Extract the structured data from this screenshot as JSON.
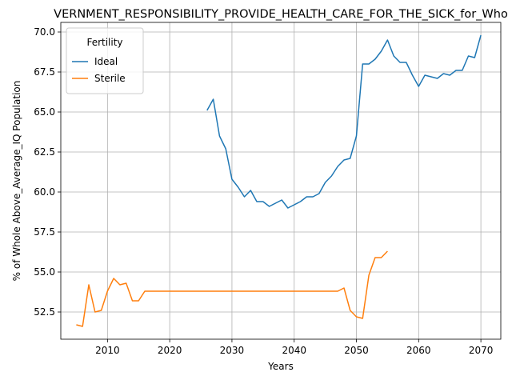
{
  "chart_data": {
    "type": "line",
    "title": "VERNMENT_RESPONSIBILITY_PROVIDE_HEALTH_CARE_FOR_THE_SICK_for_Who",
    "xlabel": "Years",
    "ylabel": "% of Whole Above_Average_IQ Population",
    "xlim": [
      2002.5,
      2073.2
    ],
    "ylim": [
      50.8,
      70.6
    ],
    "xticks": [
      2010,
      2020,
      2030,
      2040,
      2050,
      2060,
      2070
    ],
    "yticks": [
      52.5,
      55.0,
      57.5,
      60.0,
      62.5,
      65.0,
      67.5,
      70.0
    ],
    "ytick_labels": [
      "52.5",
      "55.0",
      "57.5",
      "60.0",
      "62.5",
      "65.0",
      "67.5",
      "70.0"
    ],
    "grid": true,
    "legend": {
      "title": "Fertility",
      "placement": "top-left"
    },
    "series": [
      {
        "name": "Ideal",
        "color": "#1f77b4",
        "x": [
          2026,
          2027,
          2028,
          2029,
          2030,
          2031,
          2032,
          2033,
          2034,
          2035,
          2036,
          2037,
          2038,
          2039,
          2040,
          2041,
          2042,
          2043,
          2044,
          2045,
          2046,
          2047,
          2048,
          2049,
          2050,
          2051,
          2052,
          2053,
          2054,
          2055,
          2056,
          2057,
          2058,
          2059,
          2060,
          2061,
          2062,
          2063,
          2064,
          2065,
          2066,
          2067,
          2068,
          2069,
          2070
        ],
        "y": [
          65.1,
          65.8,
          63.5,
          62.7,
          60.8,
          60.3,
          59.7,
          60.1,
          59.4,
          59.4,
          59.1,
          59.3,
          59.5,
          59.0,
          59.2,
          59.4,
          59.7,
          59.7,
          59.9,
          60.6,
          61.0,
          61.6,
          62.0,
          62.1,
          63.5,
          68.0,
          68.0,
          68.3,
          68.8,
          69.5,
          68.5,
          68.1,
          68.1,
          67.3,
          66.6,
          67.3,
          67.2,
          67.1,
          67.4,
          67.3,
          67.6,
          67.6,
          68.5,
          68.4,
          69.8
        ]
      },
      {
        "name": "Sterile",
        "color": "#ff7f0e",
        "x": [
          2005,
          2006,
          2007,
          2008,
          2009,
          2010,
          2011,
          2012,
          2013,
          2014,
          2015,
          2016,
          2017,
          2018,
          2019,
          2020,
          2021,
          2022,
          2023,
          2024,
          2025,
          2026,
          2027,
          2028,
          2029,
          2030,
          2031,
          2032,
          2033,
          2034,
          2035,
          2036,
          2037,
          2038,
          2039,
          2040,
          2041,
          2042,
          2043,
          2044,
          2045,
          2046,
          2047,
          2048,
          2049,
          2050,
          2051,
          2052,
          2053,
          2054,
          2055
        ],
        "y": [
          51.7,
          51.6,
          54.2,
          52.5,
          52.6,
          53.8,
          54.6,
          54.2,
          54.3,
          53.2,
          53.2,
          53.8,
          53.8,
          53.8,
          53.8,
          53.8,
          53.8,
          53.8,
          53.8,
          53.8,
          53.8,
          53.8,
          53.8,
          53.8,
          53.8,
          53.8,
          53.8,
          53.8,
          53.8,
          53.8,
          53.8,
          53.8,
          53.8,
          53.8,
          53.8,
          53.8,
          53.8,
          53.8,
          53.8,
          53.8,
          53.8,
          53.8,
          53.8,
          54.0,
          52.6,
          52.2,
          52.1,
          54.8,
          55.9,
          55.9,
          56.3
        ]
      }
    ]
  }
}
